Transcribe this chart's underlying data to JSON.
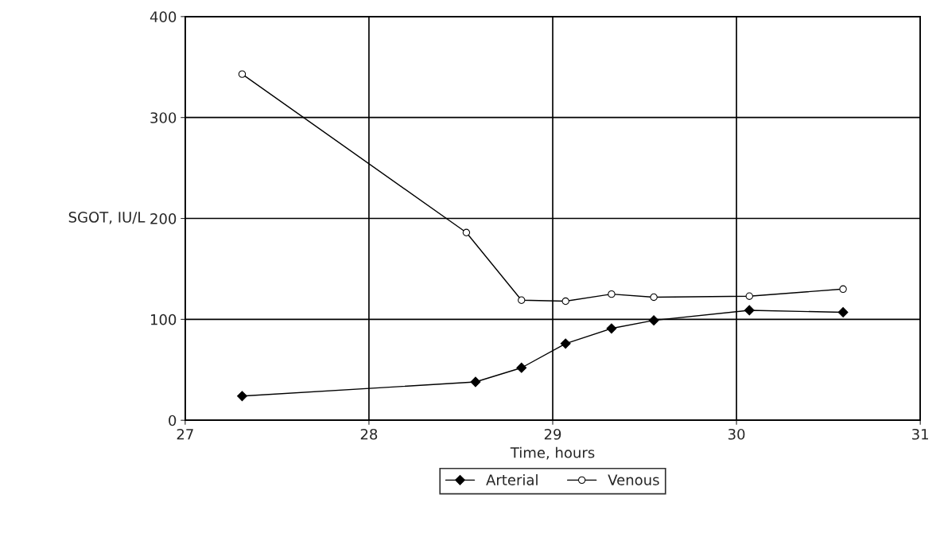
{
  "chart_data": {
    "type": "line",
    "xlabel": "Time, hours",
    "ylabel": "SGOT, IU/L",
    "xlim": [
      27,
      31
    ],
    "xticks": [
      27,
      28,
      29,
      30,
      31
    ],
    "ylim": [
      0,
      400
    ],
    "yticks": [
      0,
      100,
      200,
      300,
      400
    ],
    "grid": true,
    "legend": "bottom",
    "series": [
      {
        "name": "Arterial",
        "color": "#000000",
        "marker": "diamond",
        "x": [
          27.31,
          28.58,
          28.83,
          29.07,
          29.32,
          29.55,
          30.07,
          30.58
        ],
        "values": [
          24,
          38,
          52,
          76,
          91,
          99,
          109,
          107
        ]
      },
      {
        "name": "Venous",
        "color": "#000000",
        "marker": "circle",
        "x": [
          27.31,
          28.53,
          28.83,
          29.07,
          29.32,
          29.55,
          30.07,
          30.58
        ],
        "values": [
          343,
          186,
          119,
          118,
          125,
          122,
          123,
          130
        ]
      }
    ]
  }
}
